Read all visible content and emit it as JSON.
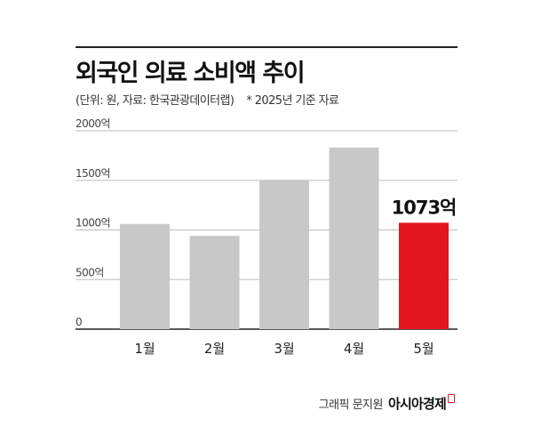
{
  "header": {
    "title": "외국인 의료 소비액 추이",
    "source": "(단위: 원, 자료: 한국관광데이터랩)",
    "note": "* 2025년 기준 자료"
  },
  "chart_data": {
    "type": "bar",
    "categories": [
      "1월",
      "2월",
      "3월",
      "4월",
      "5월"
    ],
    "values": [
      1060,
      940,
      1500,
      1830,
      1073
    ],
    "highlight_index": 4,
    "highlight_label": "1073억",
    "ylim": [
      0,
      2000
    ],
    "yticks": [
      {
        "value": 0,
        "label": "0"
      },
      {
        "value": 500,
        "label": "500억"
      },
      {
        "value": 1000,
        "label": "1000억"
      },
      {
        "value": 1500,
        "label": "1500억"
      },
      {
        "value": 2000,
        "label": "2000억"
      }
    ],
    "grid": true,
    "colors": {
      "bar": "#c8c8c8",
      "highlight": "#e3151f",
      "grid": "#bdbdbd",
      "axis": "#222222"
    }
  },
  "footer": {
    "credit": "그래픽 문지원",
    "brand": "아시아경제"
  }
}
